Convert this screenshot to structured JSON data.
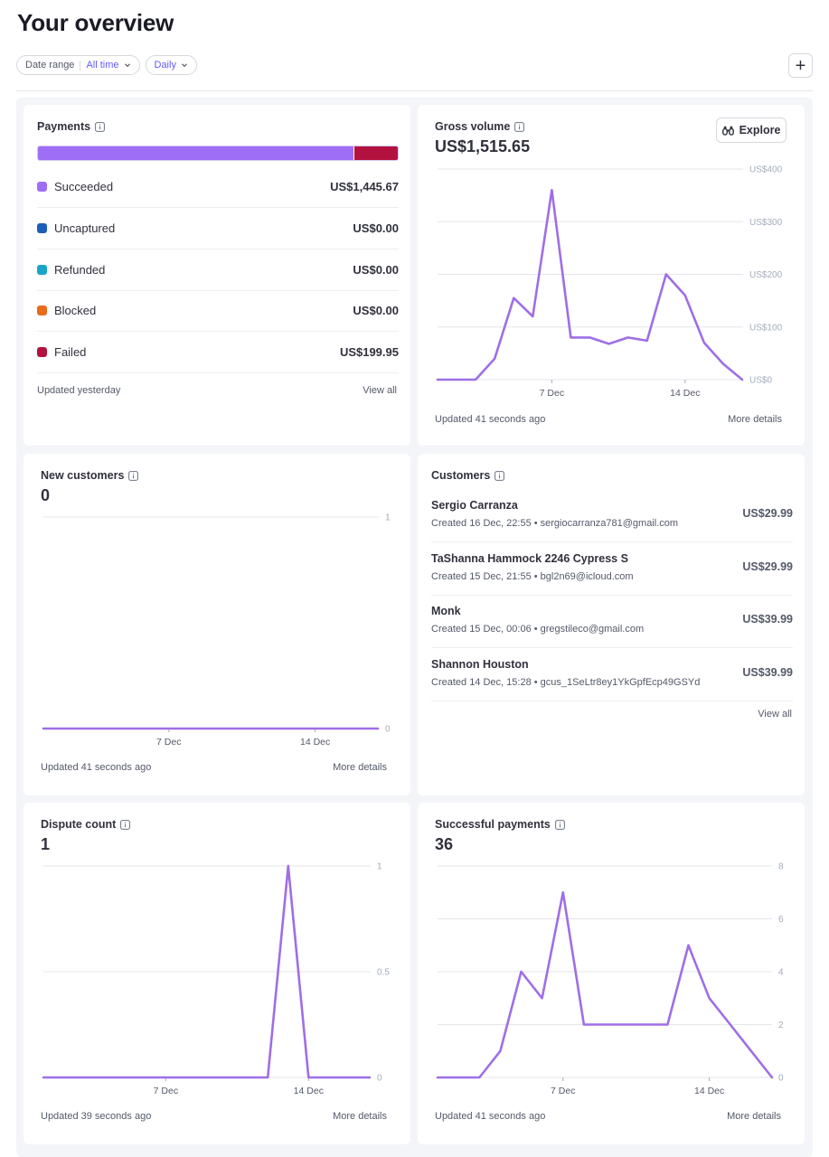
{
  "header": {
    "title": "Your overview",
    "filters": {
      "date_range_label": "Date range",
      "date_range_value": "All time",
      "interval_value": "Daily"
    },
    "add_button": "+"
  },
  "colors": {
    "accent": "#635bff",
    "line": "#9f6ee6",
    "succeeded": "#9f6ef7",
    "uncaptured": "#1d5fb8",
    "refunded": "#18a6c8",
    "blocked": "#ea6b1a",
    "failed": "#b3123f"
  },
  "payments": {
    "title": "Payments",
    "rows": [
      {
        "label": "Succeeded",
        "amount": "US$1,445.67",
        "color": "#9f6ef7"
      },
      {
        "label": "Uncaptured",
        "amount": "US$0.00",
        "color": "#1d5fb8"
      },
      {
        "label": "Refunded",
        "amount": "US$0.00",
        "color": "#18a6c8"
      },
      {
        "label": "Blocked",
        "amount": "US$0.00",
        "color": "#ea6b1a"
      },
      {
        "label": "Failed",
        "amount": "US$199.95",
        "color": "#b3123f"
      }
    ],
    "bar_share_succeeded": 0.878,
    "footer_left": "Updated yesterday",
    "footer_right": "View all"
  },
  "gross_volume": {
    "title": "Gross volume",
    "value": "US$1,515.65",
    "explore_label": "Explore",
    "footer_left": "Updated 41 seconds ago",
    "footer_right": "More details"
  },
  "new_customers": {
    "title": "New customers",
    "value": "0",
    "footer_left": "Updated 41 seconds ago",
    "footer_right": "More details"
  },
  "customers": {
    "title": "Customers",
    "rows": [
      {
        "name": "Sergio Carranza",
        "meta": "Created 16 Dec, 22:55 • sergiocarranza781@gmail.com",
        "amount": "US$29.99"
      },
      {
        "name": "TaShanna Hammock 2246 Cypress S",
        "meta": "Created 15 Dec, 21:55 • bgl2n69@icloud.com",
        "amount": "US$29.99"
      },
      {
        "name": "Monk",
        "meta": "Created 15 Dec, 00:06 • gregstileco@gmail.com",
        "amount": "US$39.99"
      },
      {
        "name": "Shannon Houston",
        "meta": "Created 14 Dec, 15:28 • gcus_1SeLtr8ey1YkGpfEcp49GSYd",
        "amount": "US$39.99"
      }
    ],
    "footer_right": "View all"
  },
  "dispute_count": {
    "title": "Dispute count",
    "value": "1",
    "footer_left": "Updated 39 seconds ago",
    "footer_right": "More details"
  },
  "successful_payments": {
    "title": "Successful payments",
    "value": "36",
    "footer_left": "Updated 41 seconds ago",
    "footer_right": "More details"
  },
  "chart_data": [
    {
      "id": "gross_volume",
      "type": "line",
      "x": [
        "1 Dec",
        "2 Dec",
        "3 Dec",
        "4 Dec",
        "5 Dec",
        "6 Dec",
        "7 Dec",
        "8 Dec",
        "9 Dec",
        "10 Dec",
        "11 Dec",
        "12 Dec",
        "13 Dec",
        "14 Dec",
        "15 Dec",
        "16 Dec",
        "17 Dec"
      ],
      "series": [
        {
          "values": [
            0,
            0,
            0,
            40,
            155,
            120,
            360,
            80,
            80,
            68,
            80,
            74,
            200,
            160,
            70,
            30,
            0
          ]
        }
      ],
      "xticks": [
        "7 Dec",
        "14 Dec"
      ],
      "xtick_index": [
        6,
        13
      ],
      "ylim": [
        0,
        400
      ],
      "yticks": [
        0,
        100,
        200,
        300,
        400
      ],
      "ytick_labels": [
        "US$0",
        "US$100",
        "US$200",
        "US$300",
        "US$400"
      ],
      "grid": true
    },
    {
      "id": "new_customers",
      "type": "line",
      "x": [
        "1 Dec",
        "2 Dec",
        "3 Dec",
        "4 Dec",
        "5 Dec",
        "6 Dec",
        "7 Dec",
        "8 Dec",
        "9 Dec",
        "10 Dec",
        "11 Dec",
        "12 Dec",
        "13 Dec",
        "14 Dec",
        "15 Dec",
        "16 Dec",
        "17 Dec"
      ],
      "series": [
        {
          "values": [
            0,
            0,
            0,
            0,
            0,
            0,
            0,
            0,
            0,
            0,
            0,
            0,
            0,
            0,
            0,
            0,
            0
          ]
        }
      ],
      "xticks": [
        "7 Dec",
        "14 Dec"
      ],
      "xtick_index": [
        6,
        13
      ],
      "ylim": [
        0,
        1
      ],
      "yticks": [
        0,
        1
      ],
      "ytick_labels": [
        "0",
        "1"
      ],
      "grid": true
    },
    {
      "id": "dispute_count",
      "type": "line",
      "x": [
        "1 Dec",
        "2 Dec",
        "3 Dec",
        "4 Dec",
        "5 Dec",
        "6 Dec",
        "7 Dec",
        "8 Dec",
        "9 Dec",
        "10 Dec",
        "11 Dec",
        "12 Dec",
        "13 Dec",
        "14 Dec",
        "15 Dec",
        "16 Dec",
        "17 Dec"
      ],
      "series": [
        {
          "values": [
            0,
            0,
            0,
            0,
            0,
            0,
            0,
            0,
            0,
            0,
            0,
            0,
            1,
            0,
            0,
            0,
            0
          ]
        }
      ],
      "xticks": [
        "7 Dec",
        "14 Dec"
      ],
      "xtick_index": [
        6,
        13
      ],
      "ylim": [
        0,
        1
      ],
      "yticks": [
        0,
        0.5,
        1
      ],
      "ytick_labels": [
        "0",
        "0.5",
        "1"
      ],
      "grid": true
    },
    {
      "id": "successful_payments",
      "type": "line",
      "x": [
        "1 Dec",
        "2 Dec",
        "3 Dec",
        "4 Dec",
        "5 Dec",
        "6 Dec",
        "7 Dec",
        "8 Dec",
        "9 Dec",
        "10 Dec",
        "11 Dec",
        "12 Dec",
        "13 Dec",
        "14 Dec",
        "15 Dec",
        "16 Dec",
        "17 Dec"
      ],
      "series": [
        {
          "values": [
            0,
            0,
            0,
            1,
            4,
            3,
            7,
            2,
            2,
            2,
            2,
            2,
            5,
            3,
            2,
            1,
            0
          ]
        }
      ],
      "xticks": [
        "7 Dec",
        "14 Dec"
      ],
      "xtick_index": [
        6,
        13
      ],
      "ylim": [
        0,
        8
      ],
      "yticks": [
        0,
        2,
        4,
        6,
        8
      ],
      "ytick_labels": [
        "0",
        "2",
        "4",
        "6",
        "8"
      ],
      "grid": true
    }
  ]
}
